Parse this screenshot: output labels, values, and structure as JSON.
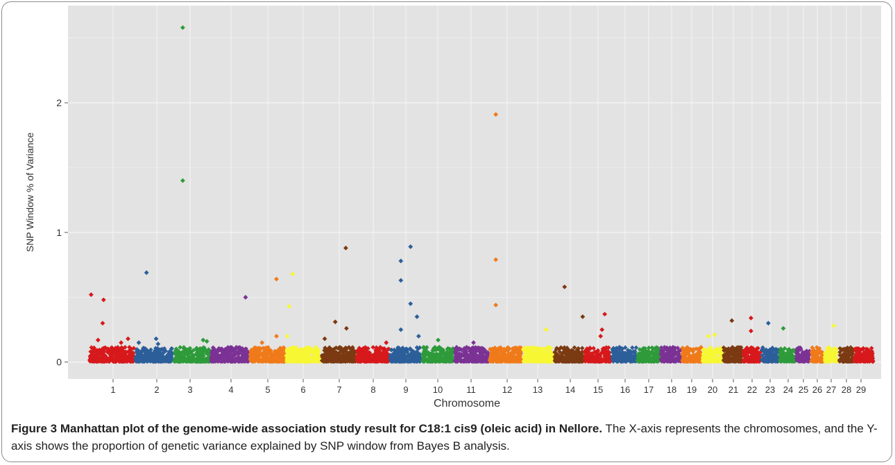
{
  "chart_data": {
    "type": "scatter",
    "xlabel": "Chromosome",
    "ylabel": "SNP Window % of Variance",
    "ylim": [
      -0.13,
      2.75
    ],
    "y_ticks": [
      0,
      1,
      2
    ],
    "y_tick_labels": [
      "0",
      "1",
      "2"
    ],
    "grid": true,
    "legend": "none",
    "chromosomes": [
      "1",
      "2",
      "3",
      "4",
      "5",
      "6",
      "7",
      "8",
      "9",
      "10",
      "11",
      "12",
      "13",
      "14",
      "15",
      "16",
      "17",
      "18",
      "19",
      "20",
      "21",
      "22",
      "23",
      "24",
      "25",
      "26",
      "27",
      "28",
      "29"
    ],
    "chromosome_colors": [
      "#d7191c",
      "#2c5f9a",
      "#2e9b3a",
      "#7b3294",
      "#f07a1a",
      "#f7f733",
      "#7b3a12",
      "#d7191c",
      "#2c5f9a",
      "#2e9b3a",
      "#7b3294",
      "#f07a1a",
      "#f7f733",
      "#7b3a12",
      "#d7191c",
      "#2c5f9a",
      "#2e9b3a",
      "#7b3294",
      "#f07a1a",
      "#f7f733",
      "#7b3a12",
      "#d7191c",
      "#2c5f9a",
      "#2e9b3a",
      "#7b3294",
      "#f07a1a",
      "#f7f733",
      "#7b3a12",
      "#d7191c"
    ],
    "peaks": [
      {
        "chromosome": "1",
        "pos": 0.05,
        "value": 0.52
      },
      {
        "chromosome": "1",
        "pos": 0.32,
        "value": 0.48
      },
      {
        "chromosome": "1",
        "pos": 0.3,
        "value": 0.3
      },
      {
        "chromosome": "1",
        "pos": 0.2,
        "value": 0.17
      },
      {
        "chromosome": "1",
        "pos": 0.7,
        "value": 0.15
      },
      {
        "chromosome": "1",
        "pos": 0.85,
        "value": 0.18
      },
      {
        "chromosome": "2",
        "pos": 0.1,
        "value": 0.15
      },
      {
        "chromosome": "2",
        "pos": 0.3,
        "value": 0.69
      },
      {
        "chromosome": "2",
        "pos": 0.55,
        "value": 0.18
      },
      {
        "chromosome": "2",
        "pos": 0.6,
        "value": 0.14
      },
      {
        "chromosome": "3",
        "pos": 0.25,
        "value": 2.58
      },
      {
        "chromosome": "3",
        "pos": 0.25,
        "value": 1.4
      },
      {
        "chromosome": "3",
        "pos": 0.8,
        "value": 0.17
      },
      {
        "chromosome": "3",
        "pos": 0.9,
        "value": 0.16
      },
      {
        "chromosome": "4",
        "pos": 0.9,
        "value": 0.5
      },
      {
        "chromosome": "4",
        "pos": 0.8,
        "value": 0.1
      },
      {
        "chromosome": "5",
        "pos": 0.75,
        "value": 0.64
      },
      {
        "chromosome": "5",
        "pos": 0.75,
        "value": 0.2
      },
      {
        "chromosome": "5",
        "pos": 0.35,
        "value": 0.15
      },
      {
        "chromosome": "6",
        "pos": 0.2,
        "value": 0.68
      },
      {
        "chromosome": "6",
        "pos": 0.1,
        "value": 0.43
      },
      {
        "chromosome": "6",
        "pos": 0.05,
        "value": 0.2
      },
      {
        "chromosome": "7",
        "pos": 0.7,
        "value": 0.88
      },
      {
        "chromosome": "7",
        "pos": 0.4,
        "value": 0.31
      },
      {
        "chromosome": "7",
        "pos": 0.72,
        "value": 0.26
      },
      {
        "chromosome": "7",
        "pos": 0.1,
        "value": 0.18
      },
      {
        "chromosome": "8",
        "pos": 0.9,
        "value": 0.15
      },
      {
        "chromosome": "9",
        "pos": 0.35,
        "value": 0.78
      },
      {
        "chromosome": "9",
        "pos": 0.35,
        "value": 0.63
      },
      {
        "chromosome": "9",
        "pos": 0.65,
        "value": 0.89
      },
      {
        "chromosome": "9",
        "pos": 0.65,
        "value": 0.45
      },
      {
        "chromosome": "9",
        "pos": 0.85,
        "value": 0.35
      },
      {
        "chromosome": "9",
        "pos": 0.35,
        "value": 0.25
      },
      {
        "chromosome": "9",
        "pos": 0.9,
        "value": 0.2
      },
      {
        "chromosome": "10",
        "pos": 0.5,
        "value": 0.17
      },
      {
        "chromosome": "11",
        "pos": 0.55,
        "value": 0.15
      },
      {
        "chromosome": "12",
        "pos": 0.2,
        "value": 1.91
      },
      {
        "chromosome": "12",
        "pos": 0.2,
        "value": 0.79
      },
      {
        "chromosome": "12",
        "pos": 0.2,
        "value": 0.44
      },
      {
        "chromosome": "13",
        "pos": 0.75,
        "value": 0.25
      },
      {
        "chromosome": "14",
        "pos": 0.35,
        "value": 0.58
      },
      {
        "chromosome": "14",
        "pos": 0.95,
        "value": 0.35
      },
      {
        "chromosome": "15",
        "pos": 0.75,
        "value": 0.37
      },
      {
        "chromosome": "15",
        "pos": 0.65,
        "value": 0.25
      },
      {
        "chromosome": "15",
        "pos": 0.6,
        "value": 0.2
      },
      {
        "chromosome": "21",
        "pos": 0.45,
        "value": 0.32
      },
      {
        "chromosome": "22",
        "pos": 0.45,
        "value": 0.34
      },
      {
        "chromosome": "22",
        "pos": 0.45,
        "value": 0.24
      },
      {
        "chromosome": "23",
        "pos": 0.4,
        "value": 0.3
      },
      {
        "chromosome": "24",
        "pos": 0.25,
        "value": 0.26
      },
      {
        "chromosome": "27",
        "pos": 0.65,
        "value": 0.28
      },
      {
        "chromosome": "20",
        "pos": 0.3,
        "value": 0.2
      },
      {
        "chromosome": "20",
        "pos": 0.6,
        "value": 0.21
      }
    ]
  },
  "caption": {
    "title": "Figure 3 Manhattan plot of the genome-wide association study result for C18:1 cis9 (oleic acid) in Nellore.",
    "text": "The X-axis represents the chromosomes, and the Y-axis shows the proportion of genetic variance explained by SNP window from Bayes B analysis."
  }
}
